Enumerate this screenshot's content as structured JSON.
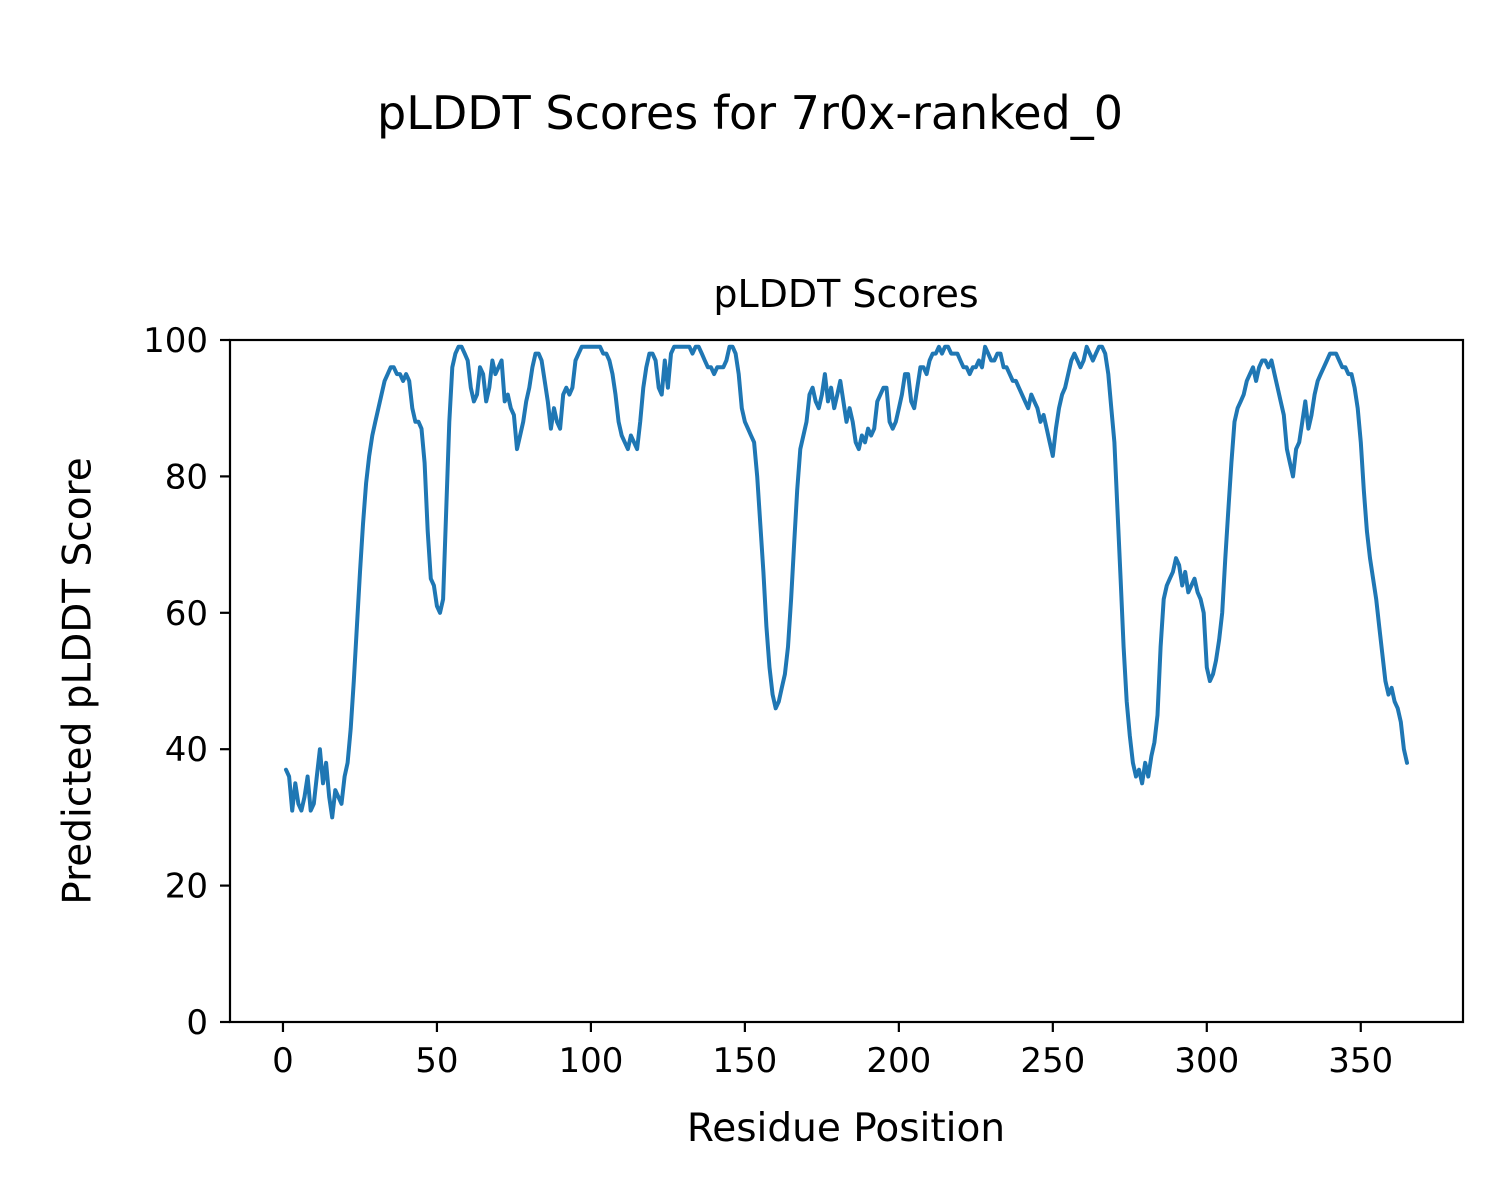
{
  "chart_data": {
    "type": "line",
    "suptitle": "pLDDT Scores for 7r0x-ranked_0",
    "title": "pLDDT Scores",
    "xlabel": "Residue Position",
    "ylabel": "Predicted pLDDT Score",
    "line_color": "#1f77b4",
    "line_width": 4,
    "grid": false,
    "legend": "none",
    "xticks": [
      0,
      50,
      100,
      150,
      200,
      250,
      300,
      350
    ],
    "yticks": [
      0,
      20,
      40,
      60,
      80,
      100
    ],
    "xlim": [
      -17.2,
      383.2
    ],
    "ylim": [
      0,
      100
    ],
    "x_start": 1,
    "x_step": 1,
    "values": [
      37,
      36,
      31,
      35,
      32,
      31,
      33,
      36,
      31,
      32,
      36,
      40,
      35,
      38,
      33,
      30,
      34,
      33,
      32,
      36,
      38,
      43,
      50,
      58,
      66,
      73,
      79,
      83,
      86,
      88,
      90,
      92,
      94,
      95,
      96,
      96,
      95,
      95,
      94,
      95,
      94,
      90,
      88,
      88,
      87,
      82,
      72,
      65,
      64,
      61,
      60,
      62,
      75,
      88,
      96,
      98,
      99,
      99,
      98,
      97,
      93,
      91,
      92,
      96,
      95,
      91,
      93,
      97,
      95,
      96,
      97,
      91,
      92,
      90,
      89,
      84,
      86,
      88,
      91,
      93,
      96,
      98,
      98,
      97,
      94,
      91,
      87,
      90,
      88,
      87,
      92,
      93,
      92,
      93,
      97,
      98,
      99,
      99,
      99,
      99,
      99,
      99,
      99,
      98,
      98,
      97,
      95,
      92,
      88,
      86,
      85,
      84,
      86,
      85,
      84,
      88,
      93,
      96,
      98,
      98,
      97,
      93,
      92,
      97,
      93,
      98,
      99,
      99,
      99,
      99,
      99,
      99,
      98,
      99,
      99,
      98,
      97,
      96,
      96,
      95,
      96,
      96,
      96,
      97,
      99,
      99,
      98,
      95,
      90,
      88,
      87,
      86,
      85,
      80,
      73,
      66,
      58,
      52,
      48,
      46,
      47,
      49,
      51,
      55,
      62,
      70,
      78,
      84,
      86,
      88,
      92,
      93,
      91,
      90,
      92,
      95,
      91,
      93,
      90,
      92,
      94,
      91,
      88,
      90,
      88,
      85,
      84,
      86,
      85,
      87,
      86,
      87,
      91,
      92,
      93,
      93,
      88,
      87,
      88,
      90,
      92,
      95,
      95,
      91,
      90,
      93,
      96,
      96,
      95,
      97,
      98,
      98,
      99,
      98,
      99,
      99,
      98,
      98,
      98,
      97,
      96,
      96,
      95,
      96,
      96,
      97,
      96,
      99,
      98,
      97,
      97,
      98,
      98,
      96,
      96,
      95,
      94,
      94,
      93,
      92,
      91,
      90,
      92,
      91,
      90,
      88,
      89,
      87,
      85,
      83,
      87,
      90,
      92,
      93,
      95,
      97,
      98,
      97,
      96,
      97,
      99,
      98,
      97,
      98,
      99,
      99,
      98,
      95,
      90,
      85,
      75,
      65,
      55,
      47,
      42,
      38,
      36,
      37,
      35,
      38,
      36,
      39,
      41,
      45,
      55,
      62,
      64,
      65,
      66,
      68,
      67,
      64,
      66,
      63,
      64,
      65,
      63,
      62,
      60,
      52,
      50,
      51,
      53,
      56,
      60,
      68,
      75,
      82,
      88,
      90,
      91,
      92,
      94,
      95,
      96,
      94,
      96,
      97,
      97,
      96,
      97,
      95,
      93,
      91,
      89,
      84,
      82,
      80,
      84,
      85,
      88,
      91,
      87,
      89,
      92,
      94,
      95,
      96,
      97,
      98,
      98,
      98,
      97,
      96,
      96,
      95,
      95,
      93,
      90,
      85,
      78,
      72,
      68,
      65,
      62,
      58,
      54,
      50,
      48,
      49,
      47,
      46,
      44,
      40,
      38
    ]
  }
}
